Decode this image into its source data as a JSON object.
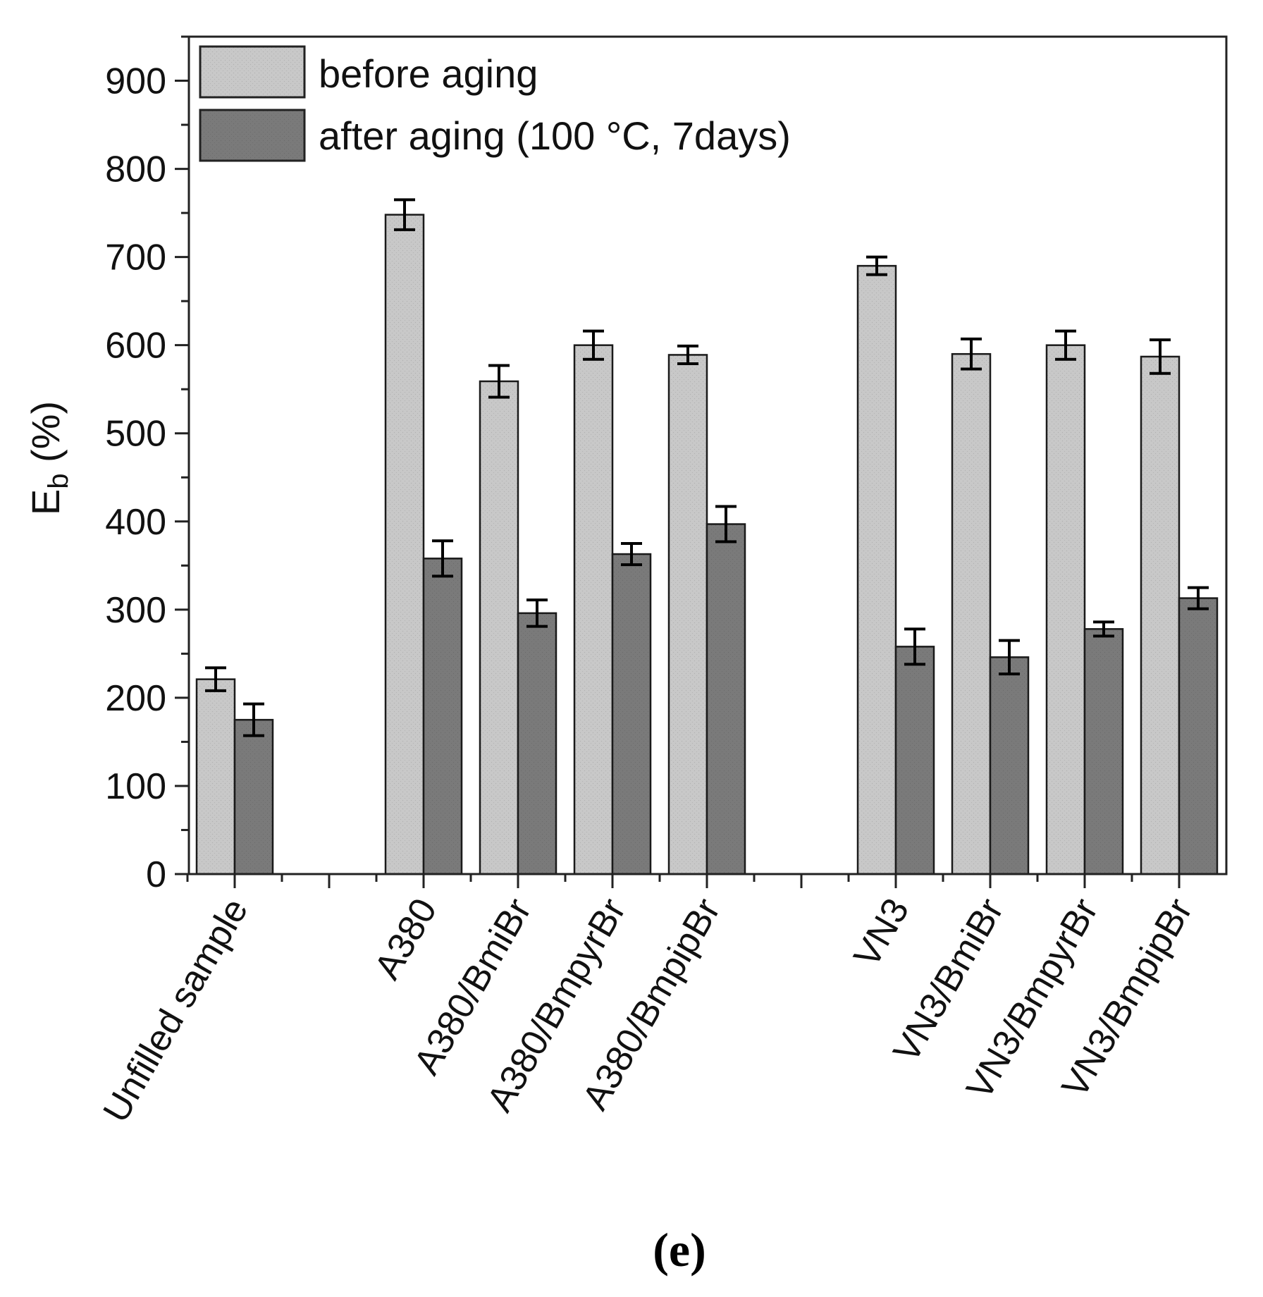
{
  "chart_data": {
    "type": "bar",
    "title": "",
    "ylabel_main": "E",
    "ylabel_sub": "b",
    "ylabel_unit": " (%)",
    "xlabel": "",
    "ylim": [
      0,
      950
    ],
    "yticks": [
      0,
      100,
      200,
      300,
      400,
      500,
      600,
      700,
      800,
      900
    ],
    "categories": [
      "Unfilled sample",
      "A380",
      "A380/BmiBr",
      "A380/BmpyrBr",
      "A380/BmpipBr",
      "VN3",
      "VN3/BmiBr",
      "VN3/BmpyrBr",
      "VN3/BmpipBr"
    ],
    "series": [
      {
        "name": "before aging",
        "color": "#c8c8c8",
        "values": [
          221,
          748,
          559,
          600,
          589,
          690,
          590,
          600,
          587
        ],
        "errors": [
          13,
          17,
          18,
          16,
          10,
          10,
          17,
          16,
          19
        ]
      },
      {
        "name": "after aging (100 °C, 7days)",
        "color": "#7a7a7a",
        "values": [
          175,
          358,
          296,
          363,
          397,
          258,
          246,
          278,
          313
        ],
        "errors": [
          18,
          20,
          15,
          12,
          20,
          20,
          19,
          8,
          12
        ]
      }
    ],
    "legend_position": "top-left",
    "grid": false
  },
  "panel_label": "(e)"
}
